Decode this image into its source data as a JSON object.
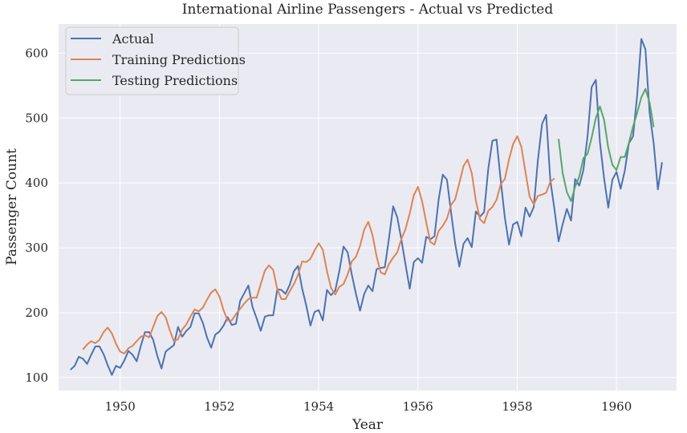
{
  "chart_data": {
    "type": "line",
    "title": "International Airline Passengers - Actual vs Predicted",
    "xlabel": "Year",
    "ylabel": "Passenger Count",
    "xlim": [
      1948.76,
      1961.21
    ],
    "ylim": [
      80,
      645
    ],
    "xticks": [
      1950,
      1952,
      1954,
      1956,
      1958,
      1960
    ],
    "yticks": [
      100,
      200,
      300,
      400,
      500,
      600
    ],
    "grid": true,
    "legend_position": "top-left",
    "series": [
      {
        "name": "Actual",
        "color": "#4c72b0",
        "start": 1949.0,
        "step": 0.0833333,
        "values": [
          112,
          118,
          132,
          129,
          121,
          135,
          148,
          148,
          136,
          119,
          104,
          118,
          115,
          126,
          141,
          135,
          125,
          149,
          170,
          170,
          158,
          133,
          114,
          140,
          145,
          150,
          178,
          163,
          172,
          178,
          199,
          199,
          184,
          162,
          146,
          166,
          171,
          180,
          193,
          181,
          183,
          218,
          230,
          242,
          209,
          191,
          172,
          194,
          196,
          196,
          236,
          235,
          229,
          243,
          264,
          272,
          237,
          211,
          180,
          201,
          204,
          188,
          235,
          227,
          234,
          264,
          302,
          293,
          259,
          229,
          203,
          229,
          242,
          233,
          267,
          269,
          270,
          315,
          364,
          347,
          312,
          274,
          237,
          278,
          284,
          277,
          317,
          313,
          318,
          374,
          413,
          405,
          355,
          306,
          271,
          306,
          315,
          301,
          356,
          348,
          355,
          422,
          465,
          467,
          404,
          347,
          305,
          336,
          340,
          318,
          362,
          348,
          363,
          435,
          491,
          505,
          404,
          359,
          310,
          337,
          360,
          342,
          406,
          396,
          420,
          472,
          548,
          559,
          463,
          407,
          362,
          405,
          417,
          391,
          419,
          461,
          472,
          535,
          622,
          606,
          508,
          461,
          390,
          432
        ]
      },
      {
        "name": "Training Predictions",
        "color": "#dd8452",
        "start": 1949.25,
        "step": 0.0833333,
        "values": [
          143,
          151,
          156,
          153,
          158,
          170,
          177,
          168,
          152,
          140,
          137,
          145,
          149,
          156,
          163,
          165,
          162,
          178,
          195,
          201,
          193,
          173,
          156,
          159,
          174,
          182,
          194,
          205,
          202,
          208,
          220,
          231,
          236,
          225,
          204,
          188,
          188,
          198,
          206,
          214,
          221,
          223,
          223,
          244,
          265,
          273,
          266,
          236,
          221,
          221,
          233,
          244,
          258,
          279,
          278,
          283,
          296,
          307,
          297,
          264,
          238,
          228,
          240,
          244,
          259,
          279,
          286,
          303,
          328,
          340,
          320,
          287,
          262,
          259,
          275,
          285,
          293,
          314,
          329,
          353,
          381,
          394,
          372,
          339,
          309,
          305,
          326,
          334,
          345,
          366,
          375,
          400,
          426,
          436,
          415,
          373,
          344,
          338,
          357,
          363,
          374,
          398,
          406,
          436,
          460,
          472,
          456,
          416,
          379,
          367,
          380,
          382,
          385,
          402,
          407
        ]
      },
      {
        "name": "Testing Predictions",
        "color": "#55a868",
        "start": 1958.833,
        "step": 0.0833333,
        "values": [
          468,
          415,
          386,
          372,
          394,
          410,
          438,
          445,
          470,
          500,
          518,
          497,
          455,
          428,
          420,
          440,
          440,
          462,
          487,
          508,
          532,
          545,
          524,
          486
        ]
      }
    ]
  }
}
